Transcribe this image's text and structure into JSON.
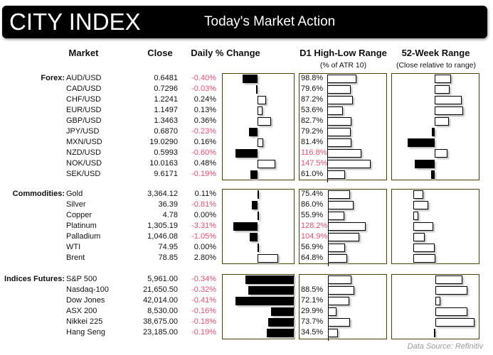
{
  "header": {
    "logo": "CITY INDEX",
    "title": "Today's Market Action"
  },
  "columns": {
    "market": "Market",
    "close": "Close",
    "daily": "Daily % Change",
    "d1": "D1 High-Low Range",
    "d1_sub": "(% of ATR 10)",
    "w52": "52-Week Range",
    "w52_sub": "(Close relative to range)"
  },
  "colors": {
    "negative": "#f0506e",
    "panel_border": "#4a4000"
  },
  "sections": [
    {
      "label": "Forex:",
      "rows": [
        {
          "market": "AUD/USD",
          "close": "0.6481",
          "change": -0.4,
          "change_text": "-0.40%",
          "d1": 98.8,
          "d1_text": "98.8%",
          "w52": 23
        },
        {
          "market": "CAD/USD",
          "close": "0.7296",
          "change": -0.03,
          "change_text": "-0.03%",
          "d1": 79.6,
          "d1_text": "79.6%",
          "w52": 21
        },
        {
          "market": "CHF/USD",
          "close": "1.2241",
          "change": 0.24,
          "change_text": "0.24%",
          "d1": 87.2,
          "d1_text": "87.2%",
          "w52": 38
        },
        {
          "market": "EUR/USD",
          "close": "1.1497",
          "change": 0.13,
          "change_text": "0.13%",
          "d1": 53.6,
          "d1_text": "53.6%",
          "w52": 40
        },
        {
          "market": "GBP/USD",
          "close": "1.3463",
          "change": 0.36,
          "change_text": "0.36%",
          "d1": 82.7,
          "d1_text": "82.7%",
          "w52": 20
        },
        {
          "market": "JPY/USD",
          "close": "0.6870",
          "change": -0.23,
          "change_text": "-0.23%",
          "d1": 79.2,
          "d1_text": "79.2%",
          "w52": -4
        },
        {
          "market": "MXN/USD",
          "close": "19.0290",
          "change": 0.16,
          "change_text": "0.16%",
          "d1": 81.4,
          "d1_text": "81.4%",
          "w52": -38
        },
        {
          "market": "NZD/USD",
          "close": "0.5993",
          "change": -0.6,
          "change_text": "-0.60%",
          "d1": 116.8,
          "d1_text": "116.8%",
          "w52": 18
        },
        {
          "market": "NOK/USD",
          "close": "10.0163",
          "change": 0.48,
          "change_text": "0.48%",
          "d1": 147.5,
          "d1_text": "147.5%",
          "w52": -28
        },
        {
          "market": "SEK/USD",
          "close": "9.6171",
          "change": -0.19,
          "change_text": "-0.19%",
          "d1": 61.0,
          "d1_text": "61.0%",
          "w52": -5
        }
      ]
    },
    {
      "label": "Commodities:",
      "rows": [
        {
          "market": "Gold",
          "close": "3,364.12",
          "change": 0.11,
          "change_text": "0.11%",
          "d1": 75.4,
          "d1_text": "75.4%",
          "w52": 14
        },
        {
          "market": "Silver",
          "close": "36.39",
          "change": -0.81,
          "change_text": "-0.81%",
          "d1": 86.0,
          "d1_text": "86.0%",
          "w52": 21
        },
        {
          "market": "Copper",
          "close": "4.78",
          "change": 0.0,
          "change_text": "0.00%",
          "d1": 55.9,
          "d1_text": "55.9%",
          "w52": 7
        },
        {
          "market": "Platinum",
          "close": "1,305.19",
          "change": -3.31,
          "change_text": "-3.31%",
          "d1": 128.2,
          "d1_text": "128.2%",
          "w52": 28
        },
        {
          "market": "Palladium",
          "close": "1,046.08",
          "change": -1.05,
          "change_text": "-1.05%",
          "d1": 104.9,
          "d1_text": "104.9%",
          "w52": 16
        },
        {
          "market": "WTI",
          "close": "74.95",
          "change": 0.0,
          "change_text": "0.00%",
          "d1": 56.9,
          "d1_text": "56.9%",
          "w52": 30
        },
        {
          "market": "Brent",
          "close": "78.85",
          "change": 2.8,
          "change_text": "2.80%",
          "d1": 64.8,
          "d1_text": "64.8%",
          "w52": 31
        }
      ]
    },
    {
      "label": "Indices Futures:",
      "rows": [
        {
          "market": "S&P 500",
          "close": "5,961.00",
          "change": -0.34,
          "change_text": "-0.34%",
          "d1": 80,
          "d1_text": "",
          "w52": 38
        },
        {
          "market": "Nasdaq-100",
          "close": "21,650.50",
          "change": -0.32,
          "change_text": "-0.32%",
          "d1": 88.5,
          "d1_text": "88.5%",
          "w52": 45
        },
        {
          "market": "Dow Jones",
          "close": "42,014.00",
          "change": -0.41,
          "change_text": "-0.41%",
          "d1": 72.1,
          "d1_text": "72.1%",
          "w52": 7
        },
        {
          "market": "ASX 200",
          "close": "8,530.00",
          "change": -0.16,
          "change_text": "-0.16%",
          "d1": 29.9,
          "d1_text": "29.9%",
          "w52": 45
        },
        {
          "market": "Nikkei 225",
          "close": "38,675.00",
          "change": -0.18,
          "change_text": "-0.18%",
          "d1": 73.7,
          "d1_text": "73.7%",
          "w52": 55
        },
        {
          "market": "Hang Seng",
          "close": "23,185.00",
          "change": -0.19,
          "change_text": "-0.19%",
          "d1": 34.5,
          "d1_text": "34.5%",
          "w52": -2
        }
      ]
    }
  ],
  "footer": {
    "source": "Data Source: Refinitiv"
  }
}
